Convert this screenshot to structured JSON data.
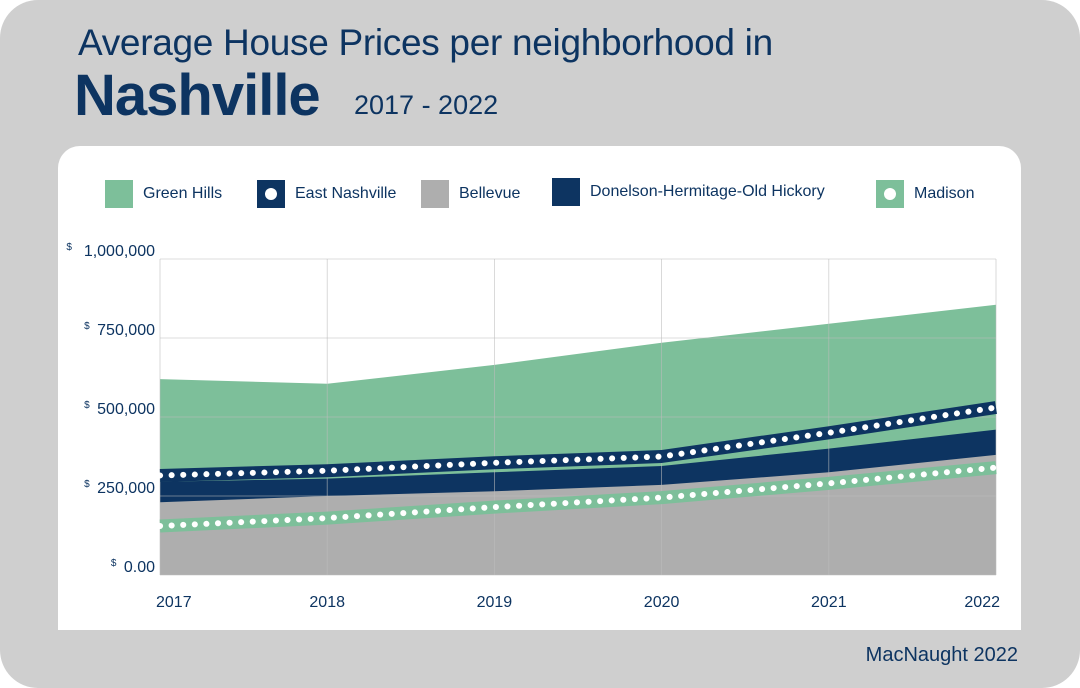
{
  "header": {
    "title_line1": "Average House Prices per neighborhood in",
    "title_main": "Nashville",
    "title_range": "2017 - 2022"
  },
  "credit": "MacNaught 2022",
  "colors": {
    "green_hills": "#7dbf9a",
    "east_nashville": "#0d3461",
    "bellevue": "#aeaeae",
    "donelson": "#0d3461",
    "madison": "#7dbf9a",
    "grid": "#bdbdbd",
    "text": "#0d3461"
  },
  "legend": [
    {
      "label": "Green Hills",
      "icon": "square-swatch",
      "color": "#7dbf9a",
      "dot": false
    },
    {
      "label": "East Nashville",
      "icon": "square-dot-swatch",
      "color": "#0d3461",
      "dot": true
    },
    {
      "label": "Bellevue",
      "icon": "square-swatch",
      "color": "#aeaeae",
      "dot": false
    },
    {
      "label": "Donelson-Hermitage-Old Hickory",
      "icon": "square-swatch",
      "color": "#0d3461",
      "dot": false
    },
    {
      "label": "Madison",
      "icon": "square-dot-swatch",
      "color": "#7dbf9a",
      "dot": true
    }
  ],
  "chart_data": {
    "type": "area",
    "x": [
      "2017",
      "2018",
      "2019",
      "2020",
      "2021",
      "2022"
    ],
    "y_ticks": [
      {
        "prefix": "$",
        "label": "0.00",
        "value": 0
      },
      {
        "prefix": "$",
        "label": "250,000",
        "value": 250000
      },
      {
        "prefix": "$",
        "label": "500,000",
        "value": 500000
      },
      {
        "prefix": "$",
        "label": "750,000",
        "value": 750000
      },
      {
        "prefix": "$",
        "label": "1,000,000",
        "value": 1000000
      }
    ],
    "ylim": [
      0,
      1000000
    ],
    "grid": true,
    "legend_position": "top",
    "series": [
      {
        "name": "Green Hills",
        "style": "area",
        "color": "#7dbf9a",
        "values": [
          620000,
          605000,
          665000,
          735000,
          795000,
          855000
        ]
      },
      {
        "name": "East Nashville",
        "style": "dotted-line",
        "color": "#0d3461",
        "values": [
          315000,
          330000,
          355000,
          375000,
          450000,
          530000
        ]
      },
      {
        "name": "Donelson-Hermitage-Old Hickory",
        "style": "area",
        "color": "#0d3461",
        "values": [
          295000,
          305000,
          325000,
          345000,
          400000,
          460000
        ]
      },
      {
        "name": "Bellevue",
        "style": "area",
        "color": "#aeaeae",
        "values": [
          230000,
          250000,
          265000,
          285000,
          325000,
          380000
        ]
      },
      {
        "name": "Madison",
        "style": "dotted-line",
        "color": "#7dbf9a",
        "values": [
          155000,
          180000,
          215000,
          245000,
          290000,
          340000
        ]
      }
    ]
  }
}
